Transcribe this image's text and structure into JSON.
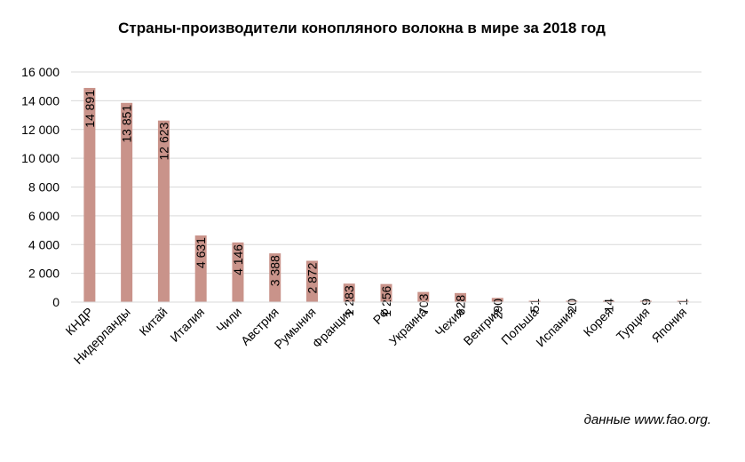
{
  "chart_data": {
    "type": "bar",
    "title": "Страны-производители конопляного волокна в мире за 2018 год",
    "xlabel": "",
    "ylabel": "",
    "categories": [
      "КНДР",
      "Нидерланды",
      "Китай",
      "Италия",
      "Чили",
      "Австрия",
      "Румыния",
      "Франция",
      "РФ",
      "Украина",
      "Чехия",
      "Венгрия",
      "Польша",
      "Испания",
      "Корея",
      "Турция",
      "Япония"
    ],
    "values": [
      14891,
      13851,
      12623,
      4631,
      4146,
      3388,
      2872,
      1283,
      1256,
      703,
      628,
      290,
      51,
      20,
      14,
      9,
      1
    ],
    "data_labels": [
      "14 891",
      "13 851",
      "12 623",
      "4 631",
      "4 146",
      "3 388",
      "2 872",
      "1 283",
      "1 256",
      "703",
      "628",
      "290",
      "51",
      "20",
      "14",
      "9",
      "1"
    ],
    "ylim": [
      0,
      16000
    ],
    "y_ticks": [
      0,
      2000,
      4000,
      6000,
      8000,
      10000,
      12000,
      14000,
      16000
    ],
    "y_tick_labels": [
      "0",
      "2 000",
      "4 000",
      "6 000",
      "8 000",
      "10 000",
      "12 000",
      "14 000",
      "16 000"
    ],
    "grid": true,
    "legend": "none",
    "bar_color": "#c9938a",
    "grid_color": "#d9d9d9",
    "source_note": "данные www.fao.org."
  }
}
